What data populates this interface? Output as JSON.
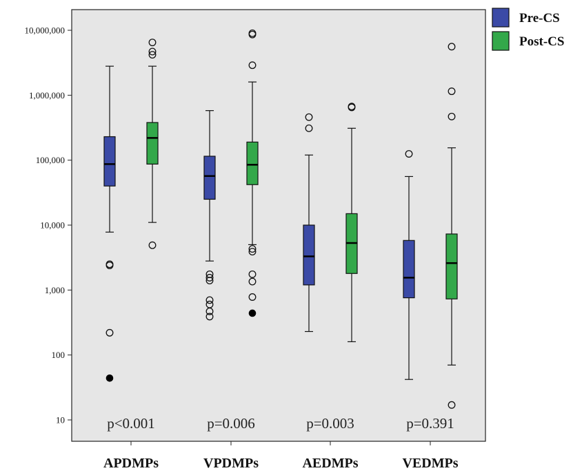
{
  "chart_data": {
    "type": "boxplot",
    "y_scale": "log",
    "ylim": [
      10,
      20000000
    ],
    "y_ticks": [
      {
        "value": 10,
        "label": "10"
      },
      {
        "value": 100,
        "label": "100"
      },
      {
        "value": 1000,
        "label": "1,000"
      },
      {
        "value": 10000,
        "label": "10,000"
      },
      {
        "value": 100000,
        "label": "100,000"
      },
      {
        "value": 1000000,
        "label": "1,000,000"
      },
      {
        "value": 10000000,
        "label": "10,000,000"
      }
    ],
    "categories": [
      "APDMPs",
      "VPDMPs",
      "AEDMPs",
      "VEDMPs"
    ],
    "p_values": [
      "p<0.001",
      "p=0.006",
      "p=0.003",
      "p=0.391"
    ],
    "legend_position": "top-right-outside",
    "grid": false,
    "series": [
      {
        "name": "Pre-CS",
        "color": "#3b4aa6",
        "boxes": [
          {
            "q1": 40000,
            "median": 87000,
            "q3": 230000,
            "whisker_low": 7800,
            "whisker_high": 2800000,
            "outliers": [
              2400,
              2500,
              220
            ],
            "extremes": [
              44
            ]
          },
          {
            "q1": 25000,
            "median": 57000,
            "q3": 115000,
            "whisker_low": 2800,
            "whisker_high": 580000,
            "outliers": [
              1750,
              1550,
              1400,
              700,
              600,
              470,
              390
            ],
            "extremes": []
          },
          {
            "q1": 1200,
            "median": 3300,
            "q3": 10000,
            "whisker_low": 230,
            "whisker_high": 120000,
            "outliers": [
              460000,
              310000
            ],
            "extremes": []
          },
          {
            "q1": 760,
            "median": 1550,
            "q3": 5800,
            "whisker_low": 42,
            "whisker_high": 56000,
            "outliers": [
              125000
            ],
            "extremes": []
          }
        ]
      },
      {
        "name": "Post-CS",
        "color": "#33a84a",
        "boxes": [
          {
            "q1": 87000,
            "median": 220000,
            "q3": 380000,
            "whisker_low": 11000,
            "whisker_high": 2800000,
            "outliers": [
              6500000,
              4700000,
              4200000,
              4900
            ],
            "extremes": []
          },
          {
            "q1": 42000,
            "median": 85000,
            "q3": 190000,
            "whisker_low": 5000,
            "whisker_high": 1600000,
            "outliers": [
              9000000,
              8600000,
              2900000,
              4300,
              3900,
              1750,
              1350,
              780
            ],
            "extremes": [
              440
            ]
          },
          {
            "q1": 1800,
            "median": 5300,
            "q3": 15000,
            "whisker_low": 160,
            "whisker_high": 310000,
            "outliers": [
              670000,
              650000
            ],
            "extremes": []
          },
          {
            "q1": 730,
            "median": 2600,
            "q3": 7300,
            "whisker_low": 70,
            "whisker_high": 155000,
            "outliers": [
              5600000,
              1150000,
              470000,
              17
            ],
            "extremes": []
          }
        ]
      }
    ]
  }
}
